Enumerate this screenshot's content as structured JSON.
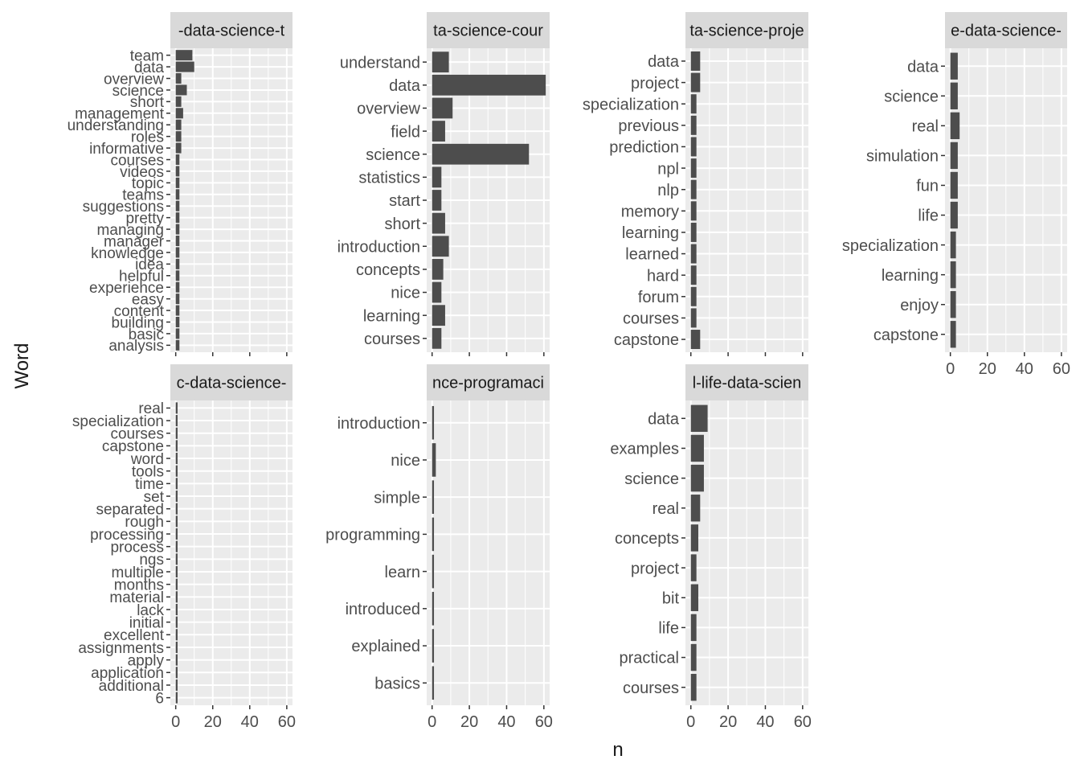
{
  "figure": {
    "xlabel": "n",
    "ylabel": "Word"
  },
  "chart_data": [
    {
      "type": "bar",
      "orientation": "horizontal",
      "strip_label": "-data-science-t",
      "categories": [
        "team",
        "data",
        "overview",
        "science",
        "short",
        "management",
        "understanding",
        "roles",
        "informative",
        "courses",
        "videos",
        "topic",
        "teams",
        "suggestions",
        "pretty",
        "managing",
        "manager",
        "knowledge",
        "idea",
        "helpful",
        "experience",
        "easy",
        "content",
        "building",
        "basic",
        "analysis"
      ],
      "values": [
        9,
        10,
        3,
        6,
        3,
        4,
        3,
        3,
        3,
        2,
        2,
        2,
        2,
        2,
        2,
        2,
        2,
        2,
        2,
        2,
        2,
        2,
        2,
        2,
        2,
        2
      ],
      "xlim": [
        0,
        62
      ],
      "x_ticks": [
        0,
        20,
        40,
        60
      ],
      "x_ticks_shown": false,
      "grid": true
    },
    {
      "type": "bar",
      "orientation": "horizontal",
      "strip_label": "ta-science-cour",
      "categories": [
        "understand",
        "data",
        "overview",
        "field",
        "science",
        "statistics",
        "start",
        "short",
        "introduction",
        "concepts",
        "nice",
        "learning",
        "courses"
      ],
      "values": [
        9,
        61,
        11,
        7,
        52,
        5,
        5,
        7,
        9,
        6,
        5,
        7,
        5
      ],
      "xlim": [
        0,
        62
      ],
      "x_ticks": [
        0,
        20,
        40,
        60
      ],
      "x_ticks_shown": false,
      "grid": true
    },
    {
      "type": "bar",
      "orientation": "horizontal",
      "strip_label": "ta-science-proje",
      "categories": [
        "data",
        "project",
        "specialization",
        "previous",
        "prediction",
        "npl",
        "nlp",
        "memory",
        "learning",
        "learned",
        "hard",
        "forum",
        "courses",
        "capstone"
      ],
      "values": [
        5,
        5,
        3,
        3,
        3,
        3,
        3,
        3,
        3,
        3,
        3,
        3,
        3,
        5
      ],
      "xlim": [
        0,
        62
      ],
      "x_ticks": [
        0,
        20,
        40,
        60
      ],
      "x_ticks_shown": false,
      "grid": true
    },
    {
      "type": "bar",
      "orientation": "horizontal",
      "strip_label": "e-data-science-",
      "categories": [
        "data",
        "science",
        "real",
        "simulation",
        "fun",
        "life",
        "specialization",
        "learning",
        "enjoy",
        "capstone"
      ],
      "values": [
        4,
        4,
        5,
        4,
        4,
        4,
        3,
        3,
        3,
        3
      ],
      "xlim": [
        0,
        62
      ],
      "x_ticks": [
        0,
        20,
        40,
        60
      ],
      "x_ticks_shown": true,
      "grid": true
    },
    {
      "type": "bar",
      "orientation": "horizontal",
      "strip_label": "c-data-science-",
      "categories": [
        "real",
        "specialization",
        "courses",
        "capstone",
        "word",
        "tools",
        "time",
        "set",
        "separated",
        "rough",
        "processing",
        "process",
        "ngs",
        "multiple",
        "months",
        "material",
        "lack",
        "initial",
        "excellent",
        "assignments",
        "apply",
        "application",
        "additional",
        "6"
      ],
      "values": [
        1,
        1,
        1,
        1,
        1,
        1,
        1,
        1,
        1,
        1,
        1,
        1,
        1,
        1,
        1,
        1,
        1,
        1,
        1,
        1,
        1,
        1,
        1,
        1
      ],
      "xlim": [
        0,
        62
      ],
      "x_ticks": [
        0,
        20,
        40,
        60
      ],
      "x_ticks_shown": true,
      "grid": true
    },
    {
      "type": "bar",
      "orientation": "horizontal",
      "strip_label": "nce-programaci",
      "categories": [
        "introduction",
        "nice",
        "simple",
        "programming",
        "learn",
        "introduced",
        "explained",
        "basics"
      ],
      "values": [
        1,
        2,
        1,
        1,
        1,
        1,
        1,
        1
      ],
      "xlim": [
        0,
        62
      ],
      "x_ticks": [
        0,
        20,
        40,
        60
      ],
      "x_ticks_shown": true,
      "grid": true
    },
    {
      "type": "bar",
      "orientation": "horizontal",
      "strip_label": "l-life-data-scien",
      "categories": [
        "data",
        "examples",
        "science",
        "real",
        "concepts",
        "project",
        "bit",
        "life",
        "practical",
        "courses"
      ],
      "values": [
        9,
        7,
        7,
        5,
        4,
        3,
        4,
        3,
        3,
        3
      ],
      "xlim": [
        0,
        62
      ],
      "x_ticks": [
        0,
        20,
        40,
        60
      ],
      "x_ticks_shown": true,
      "grid": true
    }
  ],
  "colors": {
    "panel_bg": "#ebebeb",
    "strip_bg": "#d9d9d9",
    "bar": "#4d4d4d",
    "grid": "#ffffff",
    "text": "#4d4d4d",
    "title_text": "#1a1a1a"
  }
}
